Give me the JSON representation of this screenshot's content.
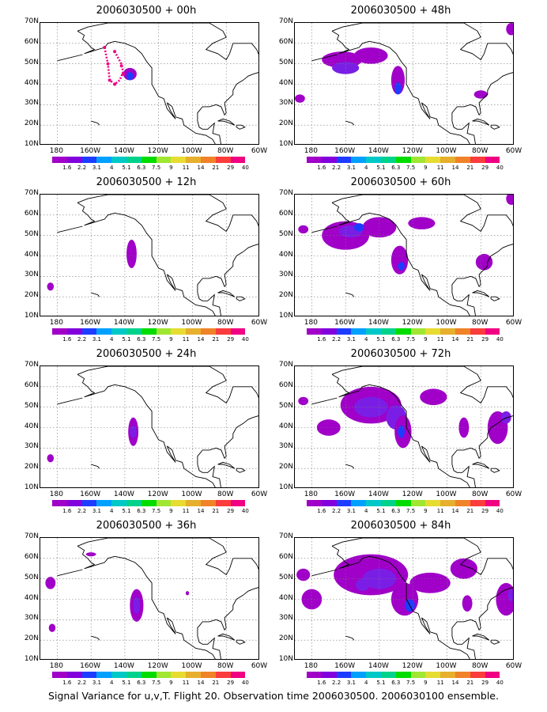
{
  "caption": "Signal Variance for u,v,T. Flight 20. Observation time 2006030500. 2006030100 ensemble.",
  "map": {
    "lat_labels": [
      "70N",
      "60N",
      "50N",
      "40N",
      "30N",
      "20N",
      "10N"
    ],
    "lon_labels": [
      "180",
      "160W",
      "140W",
      "120W",
      "100W",
      "80W",
      "60W"
    ],
    "colorbar_labels": [
      "1.6",
      "2.2",
      "3.1",
      "4",
      "5.1",
      "6.3",
      "7.5",
      "9",
      "11",
      "14",
      "21",
      "29",
      "40"
    ],
    "colorbar_colors": [
      "#a000c8",
      "#8200dc",
      "#1e3cff",
      "#00a0ff",
      "#00c8c8",
      "#00d28c",
      "#00dc00",
      "#a0e632",
      "#e6dc32",
      "#e6af2d",
      "#f08228",
      "#fa3c3c",
      "#f00082"
    ]
  },
  "panels": [
    {
      "title": "2006030500 + 00h"
    },
    {
      "title": "2006030500 + 48h"
    },
    {
      "title": "2006030500 + 12h"
    },
    {
      "title": "2006030500 + 60h"
    },
    {
      "title": "2006030500 + 24h"
    },
    {
      "title": "2006030500 + 72h"
    },
    {
      "title": "2006030500 + 36h"
    },
    {
      "title": "2006030500 + 84h"
    }
  ],
  "chart_data": {
    "type": "heatmap",
    "lon_range": [
      -190,
      -60
    ],
    "lat_range": [
      10,
      70
    ],
    "levels": [
      1.6,
      2.2,
      3.1,
      4,
      5.1,
      6.3,
      7.5,
      9,
      11,
      14,
      21,
      29,
      40
    ],
    "panels": [
      {
        "lead": "00h",
        "blobs": [
          [
            -137,
            45,
            4,
            3,
            2
          ],
          [
            -137,
            44,
            2,
            2,
            4
          ]
        ],
        "track": [
          [
            -152,
            58
          ],
          [
            -150,
            50
          ],
          [
            -149,
            42
          ],
          [
            -146,
            40
          ],
          [
            -146,
            56
          ],
          [
            -142,
            49
          ],
          [
            -141,
            45
          ]
        ]
      },
      {
        "lead": "48h",
        "blobs": [
          [
            -162,
            52,
            12,
            4,
            2
          ],
          [
            -145,
            54,
            10,
            4,
            2
          ],
          [
            -160,
            48,
            8,
            3,
            3
          ],
          [
            -129,
            42,
            4,
            7,
            2
          ],
          [
            -129,
            38,
            2,
            3,
            4
          ],
          [
            -187,
            33,
            3,
            2,
            2
          ],
          [
            -80,
            35,
            4,
            2,
            2
          ],
          [
            -62,
            67,
            3,
            3,
            2
          ]
        ],
        "track": []
      },
      {
        "lead": "12h",
        "blobs": [
          [
            -136,
            41,
            3,
            7,
            2
          ],
          [
            -184,
            25,
            2,
            2,
            2
          ]
        ],
        "track": []
      },
      {
        "lead": "60h",
        "blobs": [
          [
            -160,
            50,
            14,
            7,
            2
          ],
          [
            -140,
            54,
            10,
            5,
            2
          ],
          [
            -157,
            52,
            7,
            3,
            3
          ],
          [
            -152,
            54,
            3,
            2,
            4
          ],
          [
            -128,
            38,
            5,
            7,
            2
          ],
          [
            -127,
            35,
            2,
            2,
            4
          ],
          [
            -115,
            56,
            8,
            3,
            2
          ],
          [
            -185,
            53,
            3,
            2,
            2
          ],
          [
            -78,
            37,
            5,
            4,
            2
          ],
          [
            -62,
            68,
            3,
            3,
            2
          ]
        ],
        "track": []
      },
      {
        "lead": "24h",
        "blobs": [
          [
            -135,
            38,
            3,
            7,
            2
          ],
          [
            -135,
            38,
            2,
            3,
            3
          ],
          [
            -184,
            25,
            2,
            2,
            2
          ]
        ],
        "track": []
      },
      {
        "lead": "72h",
        "blobs": [
          [
            -145,
            51,
            18,
            9,
            2
          ],
          [
            -145,
            50,
            10,
            5,
            3
          ],
          [
            -130,
            45,
            6,
            6,
            3
          ],
          [
            -126,
            38,
            5,
            8,
            2
          ],
          [
            -127,
            38,
            2,
            3,
            4
          ],
          [
            -170,
            40,
            7,
            4,
            2
          ],
          [
            -108,
            55,
            8,
            4,
            2
          ],
          [
            -90,
            40,
            3,
            5,
            2
          ],
          [
            -70,
            40,
            6,
            8,
            2
          ],
          [
            -65,
            45,
            3,
            3,
            3
          ],
          [
            -185,
            53,
            3,
            2,
            2
          ]
        ],
        "track": []
      },
      {
        "lead": "36h",
        "blobs": [
          [
            -133,
            37,
            4,
            8,
            2
          ],
          [
            -133,
            37,
            2,
            4,
            3
          ],
          [
            -184,
            48,
            3,
            3,
            2
          ],
          [
            -183,
            26,
            2,
            2,
            2
          ],
          [
            -160,
            62,
            3,
            1,
            2
          ],
          [
            -103,
            43,
            1,
            1,
            2
          ]
        ],
        "track": []
      },
      {
        "lead": "84h",
        "blobs": [
          [
            -145,
            52,
            22,
            10,
            2
          ],
          [
            -140,
            50,
            10,
            5,
            3
          ],
          [
            -125,
            40,
            8,
            8,
            2
          ],
          [
            -122,
            37,
            3,
            3,
            4
          ],
          [
            -110,
            48,
            12,
            5,
            2
          ],
          [
            -180,
            40,
            6,
            5,
            2
          ],
          [
            -88,
            38,
            3,
            4,
            2
          ],
          [
            -90,
            55,
            8,
            5,
            2
          ],
          [
            -65,
            40,
            6,
            8,
            2
          ],
          [
            -62,
            42,
            2,
            3,
            3
          ],
          [
            -185,
            52,
            4,
            3,
            2
          ],
          [
            -150,
            47,
            4,
            3,
            3
          ]
        ],
        "track": []
      }
    ]
  }
}
